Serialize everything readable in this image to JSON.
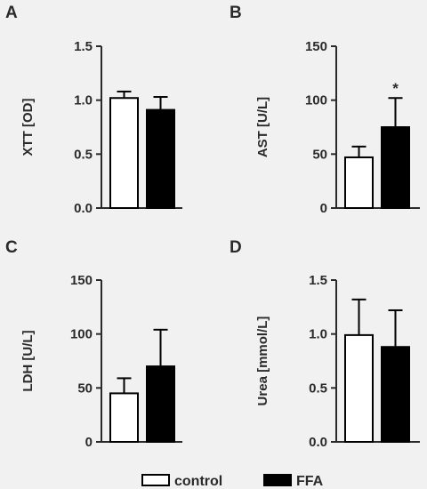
{
  "chart_data": [
    {
      "type": "bar",
      "panel": "A",
      "ylabel": "XTT [OD]",
      "ylim": [
        0,
        1.5
      ],
      "yticks": [
        "0.0",
        "0.5",
        "1.0",
        "1.5"
      ],
      "categories": [
        "control",
        "FFA"
      ],
      "values": [
        1.02,
        0.91
      ],
      "errors": [
        0.06,
        0.12
      ],
      "significance": [
        "",
        ""
      ]
    },
    {
      "type": "bar",
      "panel": "B",
      "ylabel": "AST [U/L]",
      "ylim": [
        0,
        150
      ],
      "yticks": [
        "0",
        "50",
        "100",
        "150"
      ],
      "categories": [
        "control",
        "FFA"
      ],
      "values": [
        47,
        75
      ],
      "errors": [
        10,
        27
      ],
      "significance": [
        "",
        "*"
      ]
    },
    {
      "type": "bar",
      "panel": "C",
      "ylabel": "LDH [U/L]",
      "ylim": [
        0,
        150
      ],
      "yticks": [
        "0",
        "50",
        "100",
        "150"
      ],
      "categories": [
        "control",
        "FFA"
      ],
      "values": [
        45,
        70
      ],
      "errors": [
        14,
        34
      ],
      "significance": [
        "",
        ""
      ]
    },
    {
      "type": "bar",
      "panel": "D",
      "ylabel": "Urea [mmol/L]",
      "ylim": [
        0,
        1.5
      ],
      "yticks": [
        "0.0",
        "0.5",
        "1.0",
        "1.5"
      ],
      "categories": [
        "control",
        "FFA"
      ],
      "values": [
        0.99,
        0.88
      ],
      "errors": [
        0.33,
        0.34
      ],
      "significance": [
        "",
        ""
      ]
    }
  ],
  "legend": {
    "entries": [
      {
        "label": "control",
        "fill": "#ffffff"
      },
      {
        "label": "FFA",
        "fill": "#000000"
      }
    ]
  },
  "colors": {
    "ink": "#2a2a2a",
    "bar_stroke": "#000000",
    "background": "#f1f1f1"
  }
}
